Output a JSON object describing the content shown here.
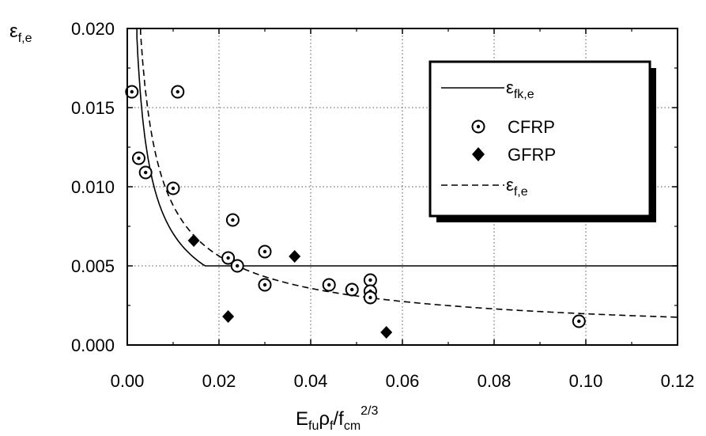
{
  "chart_data": {
    "type": "scatter",
    "ylabel": {
      "base": "ε",
      "sub": "f,e"
    },
    "xlabel": {
      "base": "E",
      "sub1": "fu",
      "mid": "ρ",
      "sub2": "f",
      "mid2": "/f",
      "sub3": "cm",
      "sup": "2/3"
    },
    "xlim": [
      0,
      0.12
    ],
    "ylim": [
      0,
      0.02
    ],
    "xticks": [
      "0.00",
      "0.02",
      "0.04",
      "0.06",
      "0.08",
      "0.10",
      "0.12"
    ],
    "yticks": [
      "0.000",
      "0.005",
      "0.010",
      "0.015",
      "0.020"
    ],
    "grid": true,
    "legend_position": "top-right",
    "legend": [
      {
        "key": "fk",
        "label": "ε",
        "sub": "fk,e",
        "marker": "solid-line"
      },
      {
        "key": "cfrp",
        "label": "CFRP",
        "marker": "open-circle"
      },
      {
        "key": "gfrp",
        "label": "GFRP",
        "marker": "filled-diamond"
      },
      {
        "key": "fe",
        "label": "ε",
        "sub": "f,e",
        "marker": "dashed-line"
      }
    ],
    "series": [
      {
        "key": "cfrp",
        "points": [
          [
            0.001,
            0.016
          ],
          [
            0.011,
            0.016
          ],
          [
            0.0025,
            0.0118
          ],
          [
            0.004,
            0.0109
          ],
          [
            0.01,
            0.0099
          ],
          [
            0.023,
            0.0079
          ],
          [
            0.03,
            0.0059
          ],
          [
            0.022,
            0.0055
          ],
          [
            0.024,
            0.005
          ],
          [
            0.03,
            0.0038
          ],
          [
            0.044,
            0.0038
          ],
          [
            0.049,
            0.0035
          ],
          [
            0.053,
            0.0041
          ],
          [
            0.053,
            0.0034
          ],
          [
            0.053,
            0.003
          ],
          [
            0.0985,
            0.0015
          ]
        ]
      },
      {
        "key": "gfrp",
        "points": [
          [
            0.0145,
            0.0066
          ],
          [
            0.0365,
            0.0056
          ],
          [
            0.022,
            0.0018
          ],
          [
            0.0565,
            0.0008
          ]
        ]
      }
    ],
    "curves": {
      "fk": {
        "coef": 0.000353,
        "exp": -0.65,
        "cap": 0.005
      },
      "fe": {
        "coef": 0.000442,
        "exp": -0.65
      }
    }
  }
}
